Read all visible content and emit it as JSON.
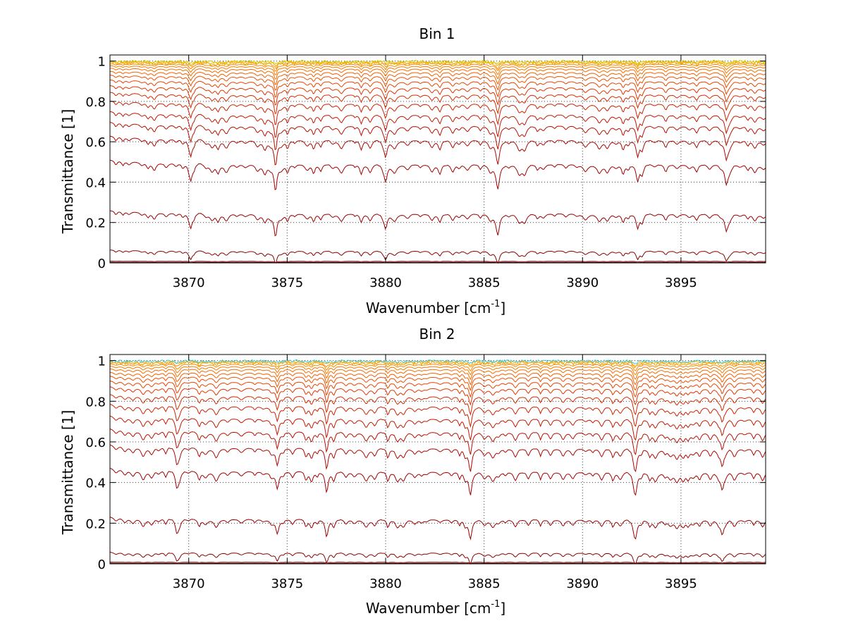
{
  "chart_data": [
    {
      "type": "line",
      "title": "Bin 1",
      "xlabel": "Wavenumber [cm",
      "xlabel_sup": "-1",
      "xlabel_end": "]",
      "ylabel": "Transmittance [1]",
      "xlim": [
        3866,
        3899.3
      ],
      "ylim": [
        0,
        1.03
      ],
      "xticks": [
        3870,
        3875,
        3880,
        3885,
        3890,
        3895
      ],
      "xtick_labels": [
        "3870",
        "3875",
        "3880",
        "3885",
        "3890",
        "3895"
      ],
      "yticks": [
        0,
        0.2,
        0.4,
        0.6,
        0.8,
        1
      ],
      "ytick_labels": [
        "0",
        "0.2",
        "0.4",
        "0.6",
        "0.8",
        "1"
      ],
      "grid": true,
      "series_levels": [
        0.003,
        0.008,
        0.06,
        0.245,
        0.49,
        0.61,
        0.68,
        0.735,
        0.79,
        0.835,
        0.87,
        0.9,
        0.925,
        0.945,
        0.962,
        0.975,
        0.985,
        0.992,
        0.996,
        0.999
      ],
      "series_colors": [
        "#5a0000",
        "#7a0000",
        "#8b0000",
        "#990000",
        "#a30000",
        "#ad0800",
        "#b81000",
        "#c21800",
        "#cc2200",
        "#d62c00",
        "#e03600",
        "#e84400",
        "#ee5200",
        "#f26000",
        "#f56e00",
        "#f77c00",
        "#f98a00",
        "#fb9800",
        "#f0b000",
        "#d8c800"
      ]
    },
    {
      "type": "line",
      "title": "Bin 2",
      "xlabel": "Wavenumber [cm",
      "xlabel_sup": "-1",
      "xlabel_end": "]",
      "ylabel": "Transmittance [1]",
      "xlim": [
        3866,
        3899.3
      ],
      "ylim": [
        0,
        1.03
      ],
      "xticks": [
        3870,
        3875,
        3880,
        3885,
        3890,
        3895
      ],
      "xtick_labels": [
        "3870",
        "3875",
        "3880",
        "3885",
        "3890",
        "3895"
      ],
      "yticks": [
        0,
        0.2,
        0.4,
        0.6,
        0.8,
        1
      ],
      "ytick_labels": [
        "0",
        "0.2",
        "0.4",
        "0.6",
        "0.8",
        "1"
      ],
      "grid": true,
      "series_levels": [
        0.003,
        0.008,
        0.055,
        0.22,
        0.455,
        0.57,
        0.65,
        0.715,
        0.775,
        0.825,
        0.865,
        0.895,
        0.92,
        0.94,
        0.958,
        0.972,
        0.983,
        0.991,
        0.996,
        0.999
      ],
      "series_colors": [
        "#5a0000",
        "#7a0000",
        "#8b0000",
        "#990000",
        "#a30000",
        "#ad0800",
        "#b81000",
        "#c21800",
        "#cc2200",
        "#d62c00",
        "#e03600",
        "#e84400",
        "#ee5200",
        "#f26000",
        "#f56e00",
        "#f77c00",
        "#f98a00",
        "#fb9800",
        "#f0b000",
        "#40c8d8"
      ]
    }
  ]
}
